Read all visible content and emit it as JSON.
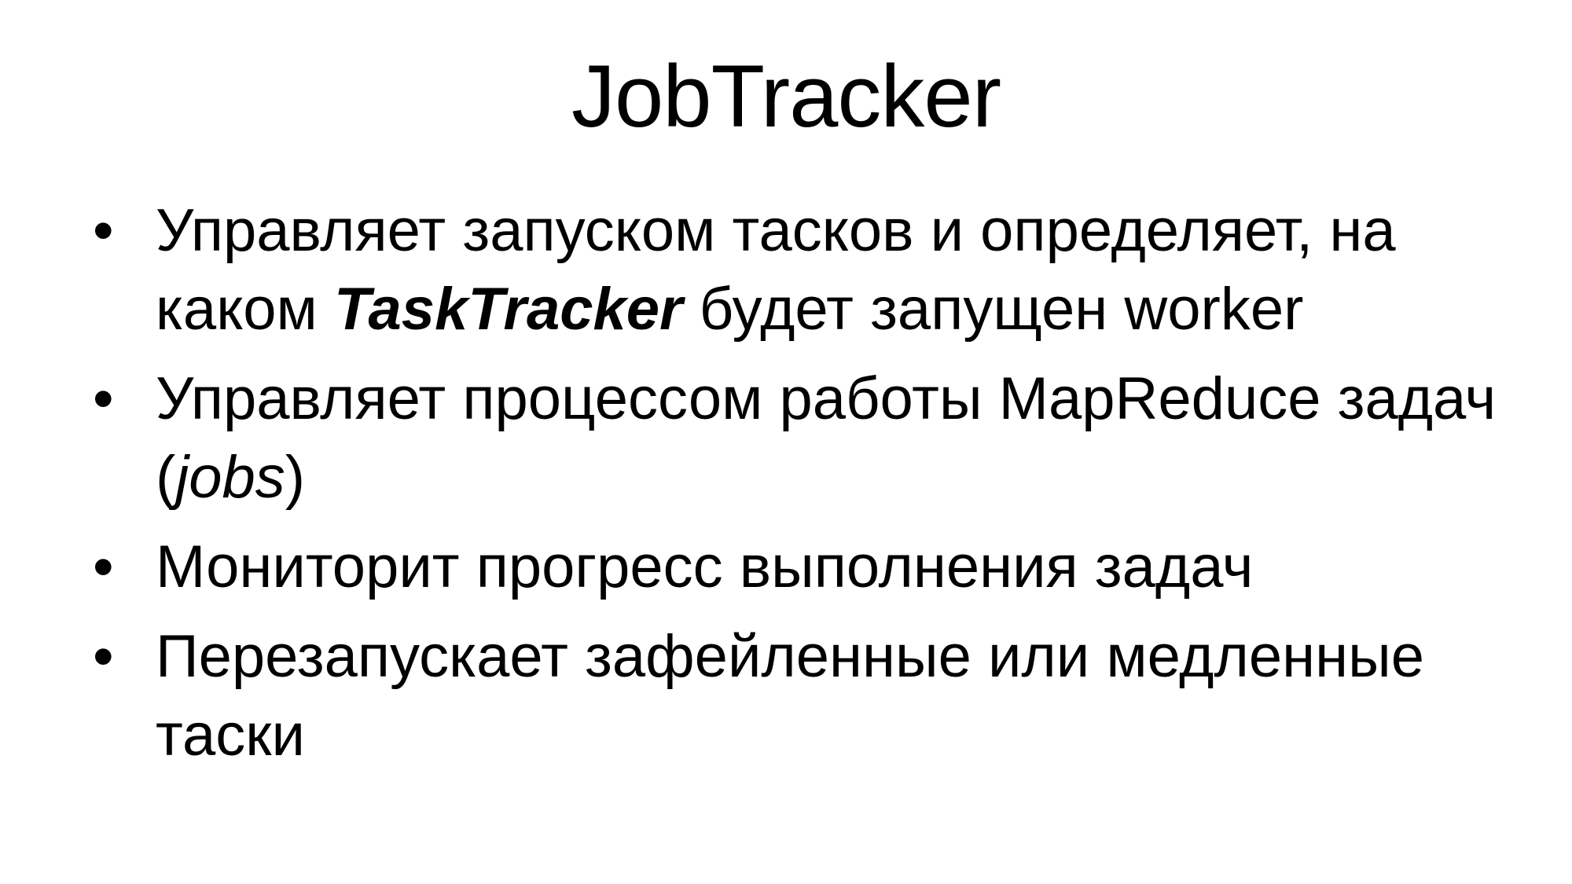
{
  "slide": {
    "title": "JobTracker",
    "bullet_char": "•",
    "bullets": [
      {
        "part1": "Управляет запуском тасков и определяет, на каком ",
        "emphasis": "TaskTracker",
        "part2": " будет запущен worker"
      },
      {
        "part1": "Управляет процессом работы MapReduce задач (",
        "emphasis": "jobs",
        "part2": ")"
      },
      {
        "text": "Мониторит прогресс выполнения задач"
      },
      {
        "text": "Перезапускает зафейленные или медленные таски"
      }
    ]
  }
}
